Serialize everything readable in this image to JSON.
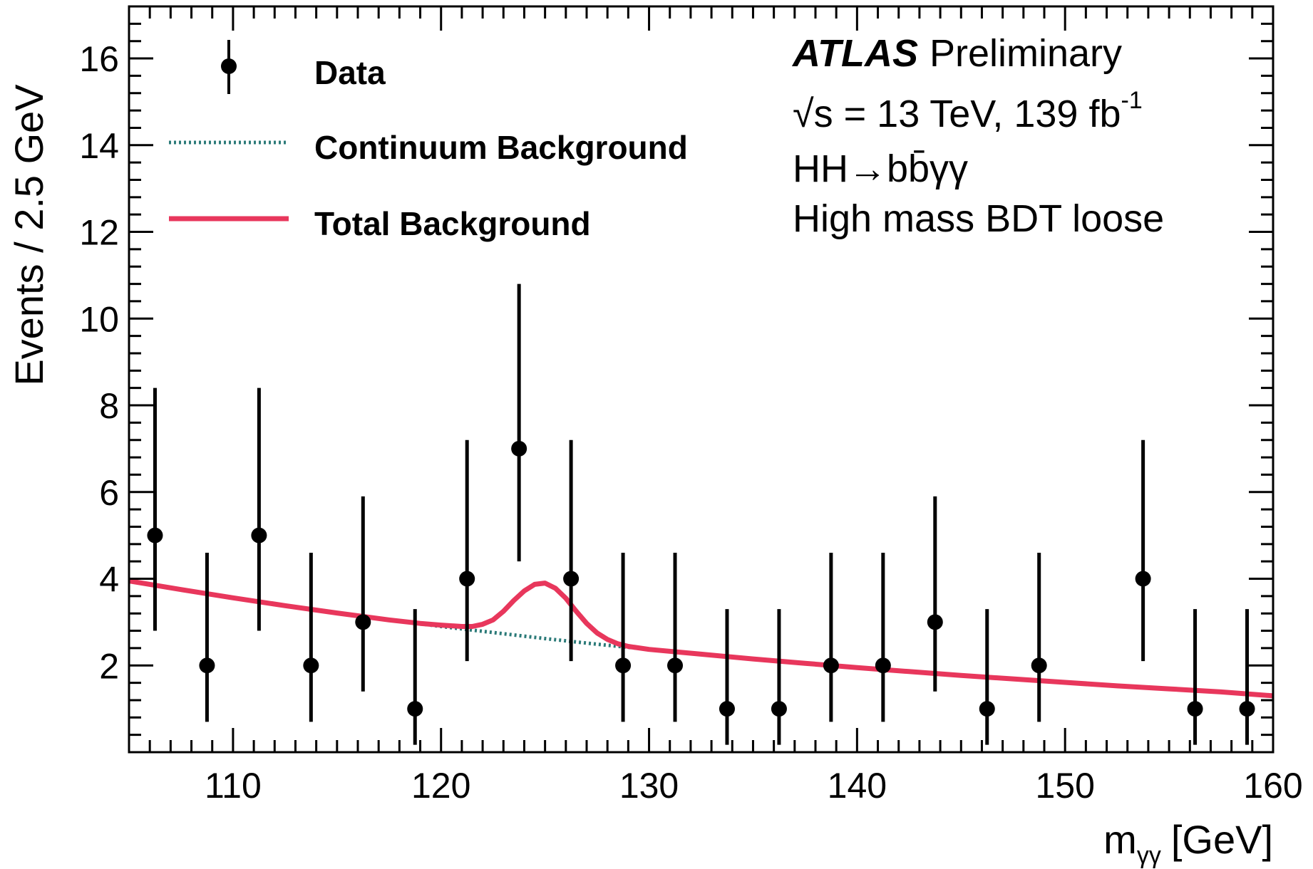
{
  "chart_data": {
    "type": "scatter",
    "title": "",
    "xlabel": "m",
    "xlabel_subscript": "γγ",
    "xlabel_unit": "[GeV]",
    "ylabel": "Events /  2.5 GeV",
    "xlim": [
      105,
      160
    ],
    "ylim": [
      0,
      17.2
    ],
    "x_ticks": [
      110,
      120,
      130,
      140,
      150,
      160
    ],
    "y_ticks": [
      2,
      4,
      6,
      8,
      10,
      12,
      14,
      16
    ],
    "grid": false,
    "legend_placement": "top-left",
    "colors": {
      "data": "#000000",
      "continuum": "#2b7a78",
      "total": "#e8375c"
    },
    "legend": [
      {
        "key": "data",
        "label": "Data"
      },
      {
        "key": "continuum",
        "label": "Continuum Background"
      },
      {
        "key": "total",
        "label": "Total Background"
      }
    ],
    "annotations": {
      "experiment": "ATLAS",
      "status": "Preliminary",
      "energy_lumi": "√s = 13 TeV, 139 fb",
      "lumi_superscript": "-1",
      "process": "HH→bb̄γγ",
      "category": "High mass BDT loose"
    },
    "series": [
      {
        "name": "Data",
        "kind": "points",
        "x": [
          106.25,
          108.75,
          111.25,
          113.75,
          116.25,
          118.75,
          121.25,
          123.75,
          126.25,
          128.75,
          131.25,
          133.75,
          136.25,
          138.75,
          141.25,
          143.75,
          146.25,
          148.75,
          151.25,
          153.75,
          156.25,
          158.75
        ],
        "y": [
          5,
          2,
          5,
          2,
          3,
          1,
          4,
          7,
          4,
          2,
          2,
          1,
          1,
          2,
          2,
          3,
          1,
          2,
          0,
          4,
          1,
          1
        ],
        "err_low": [
          2.2,
          1.3,
          2.2,
          1.3,
          1.6,
          0.83,
          1.9,
          2.6,
          1.9,
          1.3,
          1.3,
          0.83,
          0.83,
          1.3,
          1.3,
          1.6,
          0.83,
          1.3,
          0,
          1.9,
          0.83,
          0.83
        ],
        "err_high": [
          3.4,
          2.6,
          3.4,
          2.6,
          2.9,
          2.3,
          3.2,
          3.8,
          3.2,
          2.6,
          2.6,
          2.3,
          2.3,
          2.6,
          2.6,
          2.9,
          2.3,
          2.6,
          0,
          3.2,
          2.3,
          2.3
        ]
      },
      {
        "name": "Continuum Background",
        "kind": "line",
        "style": "dotted",
        "x": [
          105,
          107.5,
          110,
          112.5,
          115,
          117.5,
          120,
          122.5,
          125,
          127.5,
          130,
          132.5,
          135,
          137.5,
          140,
          142.5,
          145,
          147.5,
          150,
          152.5,
          155,
          157.5,
          160
        ],
        "y": [
          3.95,
          3.75,
          3.56,
          3.38,
          3.21,
          3.05,
          2.9,
          2.76,
          2.62,
          2.49,
          2.37,
          2.26,
          2.15,
          2.05,
          1.95,
          1.86,
          1.77,
          1.69,
          1.61,
          1.53,
          1.46,
          1.39,
          1.3
        ]
      },
      {
        "name": "Total Background",
        "kind": "line",
        "style": "solid",
        "x": [
          105,
          107.5,
          110,
          112.5,
          115,
          117.5,
          119,
          120,
          121,
          121.5,
          122,
          122.5,
          123,
          123.5,
          124,
          124.5,
          125,
          125.5,
          126,
          126.5,
          127,
          127.5,
          128,
          128.5,
          129,
          130,
          132.5,
          135,
          137.5,
          140,
          142.5,
          145,
          147.5,
          150,
          152.5,
          155,
          157.5,
          160
        ],
        "y": [
          3.95,
          3.75,
          3.56,
          3.38,
          3.21,
          3.05,
          2.97,
          2.93,
          2.9,
          2.9,
          2.95,
          3.05,
          3.25,
          3.5,
          3.72,
          3.87,
          3.9,
          3.78,
          3.55,
          3.25,
          2.97,
          2.75,
          2.6,
          2.5,
          2.44,
          2.37,
          2.26,
          2.15,
          2.05,
          1.95,
          1.86,
          1.77,
          1.69,
          1.61,
          1.53,
          1.46,
          1.39,
          1.3
        ]
      }
    ]
  }
}
